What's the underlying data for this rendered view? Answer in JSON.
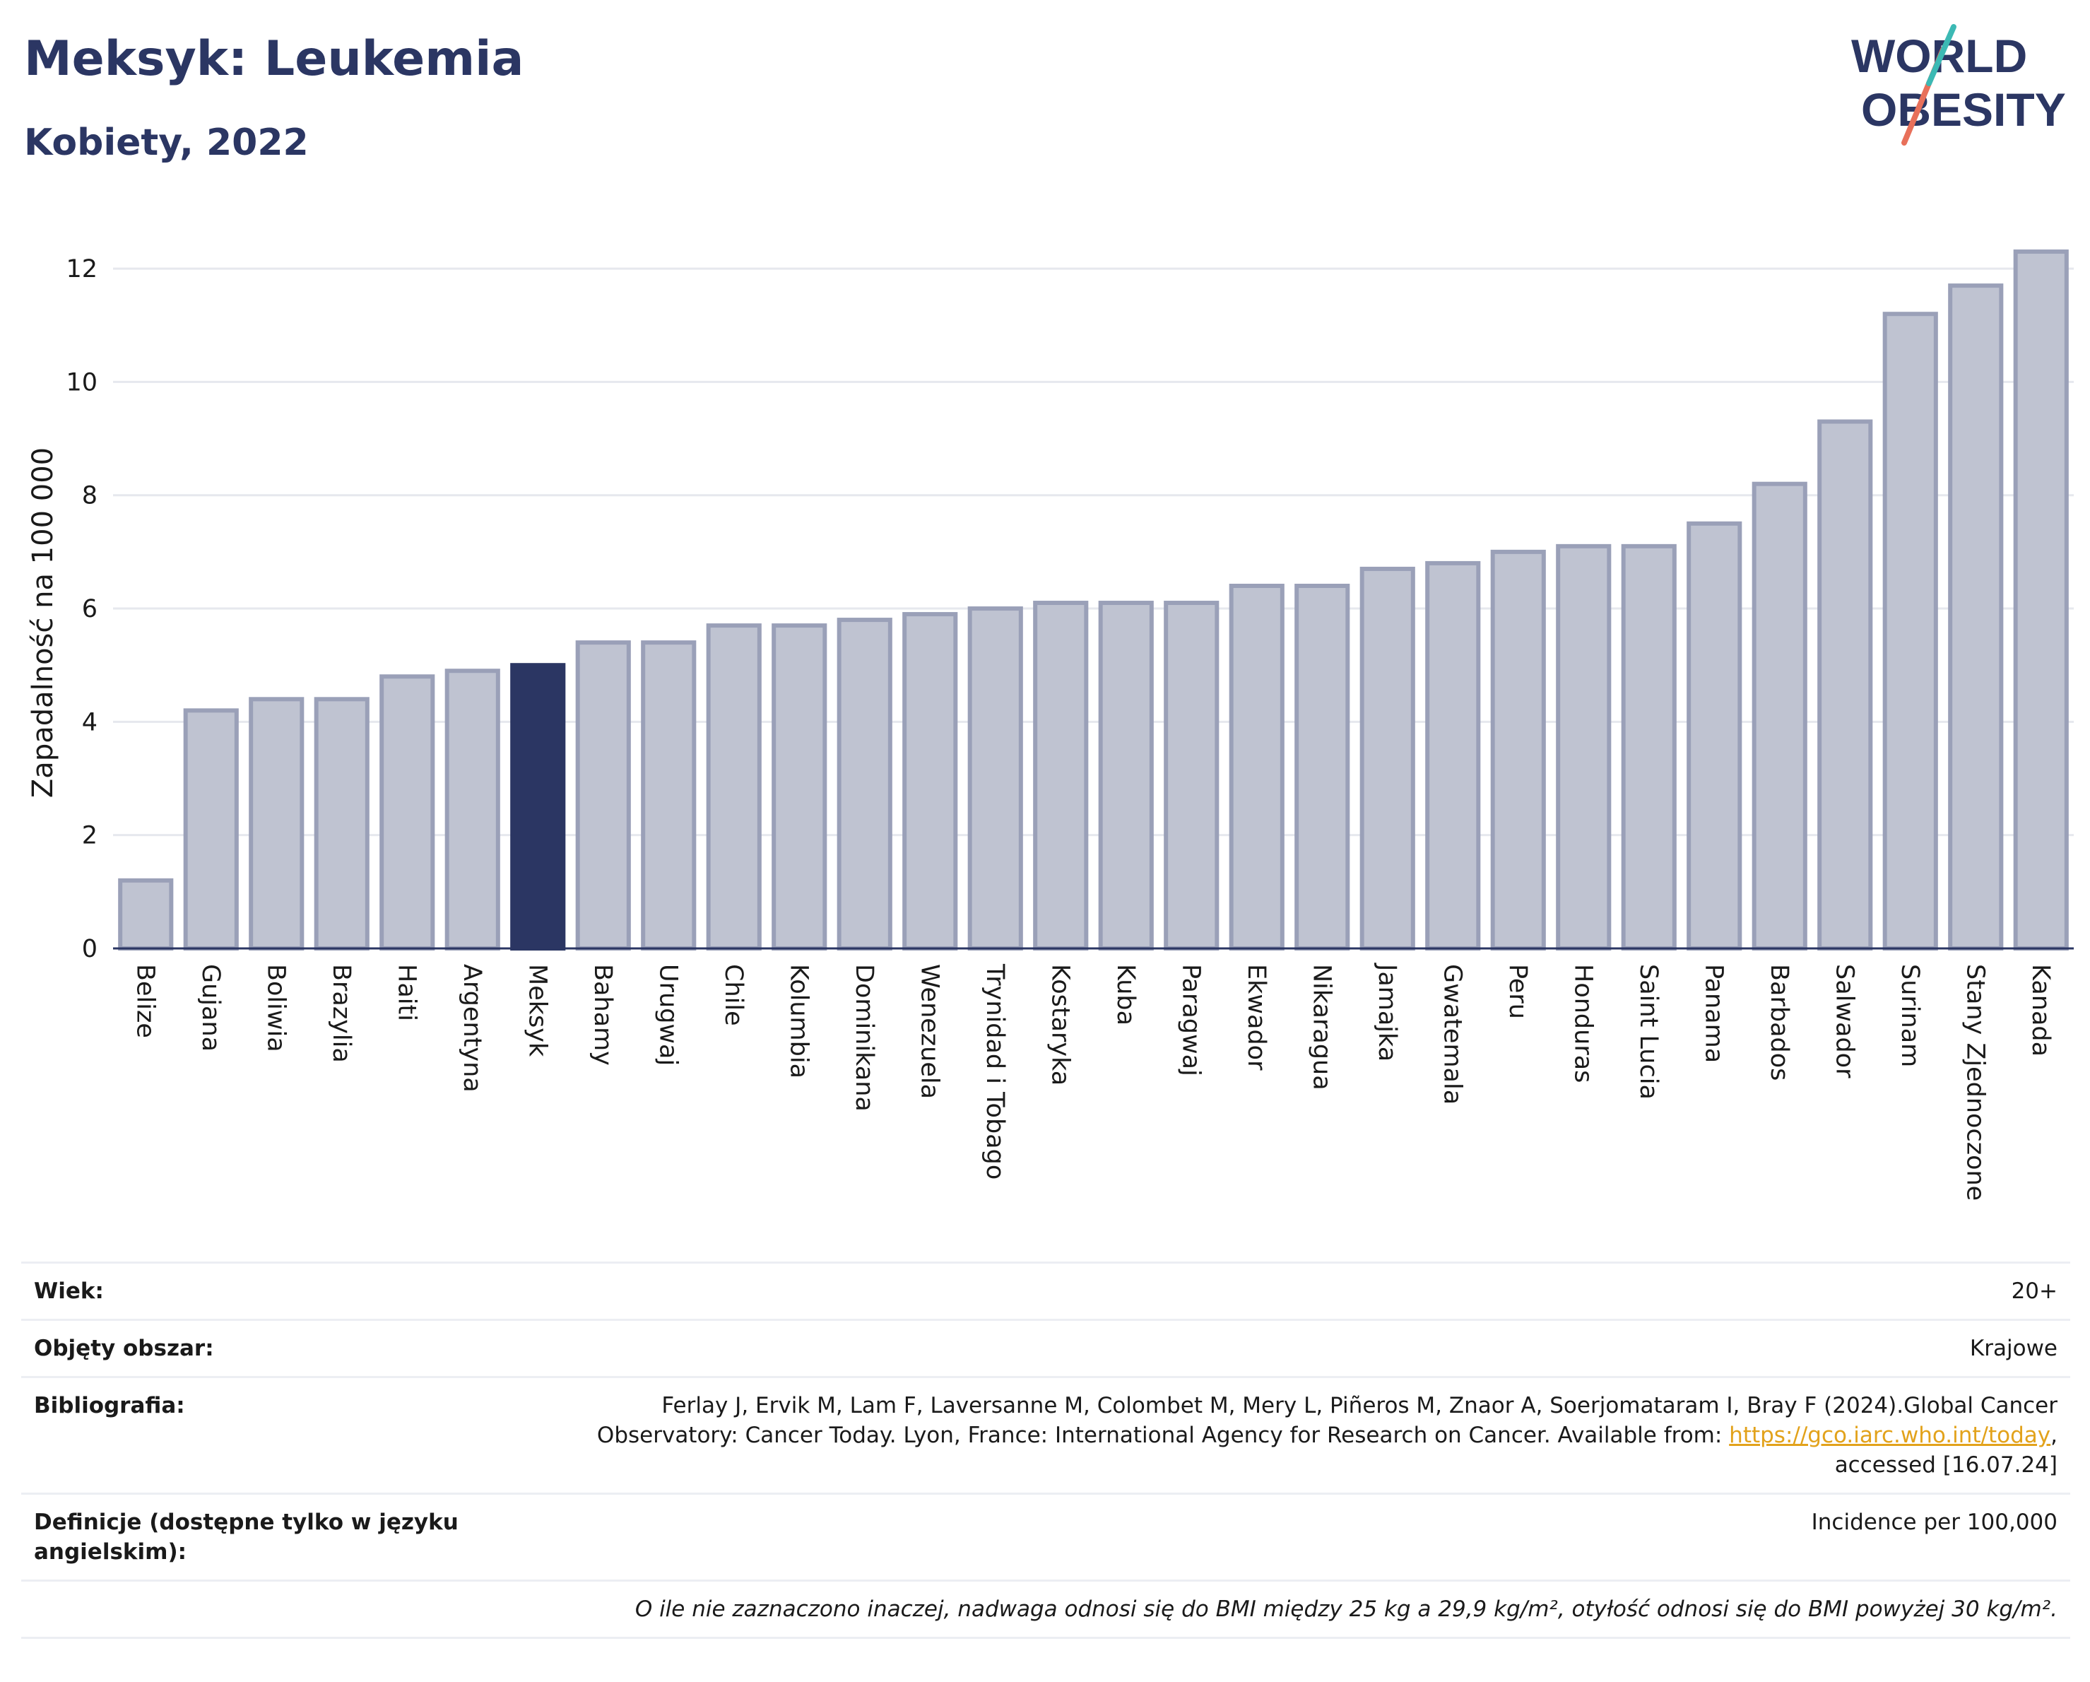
{
  "header": {
    "title": "Meksyk: Leukemia",
    "subtitle": "Kobiety, 2022",
    "logo_line1": "WORLD",
    "logo_line2": "OBESITY"
  },
  "colors": {
    "highlight": "#2b3663",
    "bar": "#bfc3d1",
    "bar_stroke": "#9aa0b8",
    "grid": "#e6e8ee",
    "text": "#1a1a1a",
    "link": "#e2a21b"
  },
  "chart_data": {
    "type": "bar",
    "ylabel": "Zapadalność na 100 000",
    "ylim": [
      0,
      12.5
    ],
    "yticks": [
      0,
      2,
      4,
      6,
      8,
      10,
      12
    ],
    "grid": true,
    "highlight": "Meksyk",
    "categories": [
      "Belize",
      "Gujana",
      "Boliwia",
      "Brazylia",
      "Haiti",
      "Argentyna",
      "Meksyk",
      "Bahamy",
      "Urugwaj",
      "Chile",
      "Kolumbia",
      "Dominikana",
      "Wenezuela",
      "Trynidad i Tobago",
      "Kostaryka",
      "Kuba",
      "Paragwaj",
      "Ekwador",
      "Nikaragua",
      "Jamajka",
      "Gwatemala",
      "Peru",
      "Honduras",
      "Saint Lucia",
      "Panama",
      "Barbados",
      "Salwador",
      "Surinam",
      "Stany Zjednoczone",
      "Kanada"
    ],
    "values": [
      1.2,
      4.2,
      4.4,
      4.4,
      4.8,
      4.9,
      5.0,
      5.4,
      5.4,
      5.7,
      5.7,
      5.8,
      5.9,
      6.0,
      6.1,
      6.1,
      6.1,
      6.4,
      6.4,
      6.7,
      6.8,
      7.0,
      7.1,
      7.1,
      7.5,
      8.2,
      9.3,
      11.2,
      11.7,
      12.3
    ]
  },
  "meta": {
    "wiek_label": "Wiek:",
    "wiek_value": "20+",
    "obszar_label": "Objęty obszar:",
    "obszar_value": "Krajowe",
    "biblio_label": "Bibliografia:",
    "biblio_line1": "Ferlay J, Ervik M, Lam F, Laversanne M, Colombet M, Mery L, Piñeros M, Znaor A, Soerjomataram I, Bray F (2024).Global Cancer",
    "biblio_line2": "Observatory: Cancer Today. Lyon, France: International Agency for Research on Cancer. Available from: ",
    "biblio_link": "https://gco.iarc.who.int/today",
    "biblio_line2_end": ",",
    "biblio_line3": "accessed [16.07.24]",
    "def_label": "Definicje (dostępne tylko w języku angielskim):",
    "def_value": "Incidence per 100,000",
    "note": "O ile nie zaznaczono inaczej, nadwaga odnosi się do BMI między 25 kg a 29,9 kg/m², otyłość odnosi się do BMI powyżej 30 kg/m²."
  }
}
